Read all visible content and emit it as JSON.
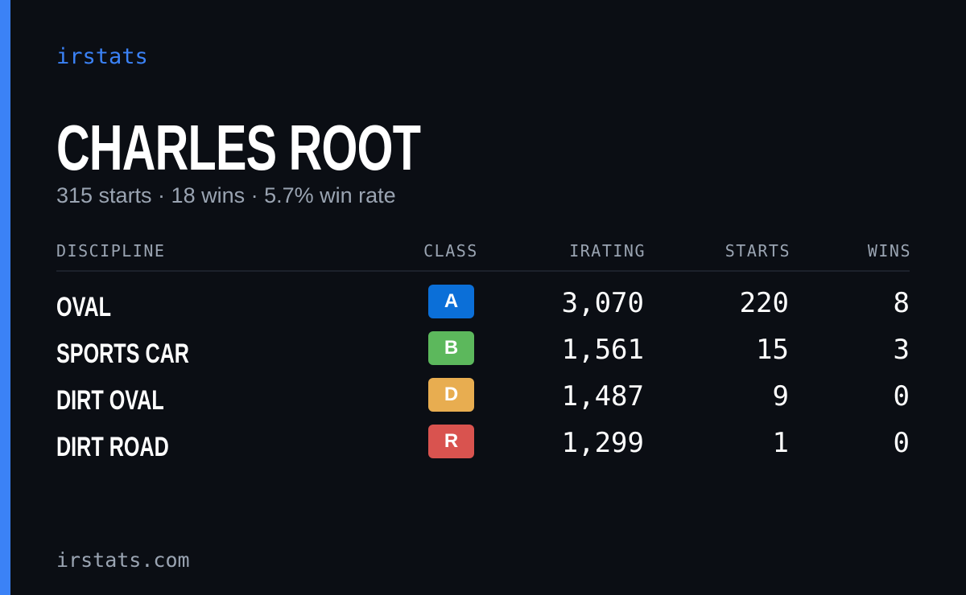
{
  "brand": "irstats",
  "profile": {
    "name": "CHARLES ROOT",
    "summary": "315 starts · 18 wins · 5.7% win rate"
  },
  "table": {
    "headers": [
      "DISCIPLINE",
      "CLASS",
      "IRATING",
      "STARTS",
      "WINS"
    ],
    "rows": [
      {
        "discipline": "OVAL",
        "class": "A",
        "class_color": "#0b6fd8",
        "irating": "3,070",
        "starts": "220",
        "wins": "8"
      },
      {
        "discipline": "SPORTS CAR",
        "class": "B",
        "class_color": "#5cb85c",
        "irating": "1,561",
        "starts": "15",
        "wins": "3"
      },
      {
        "discipline": "DIRT OVAL",
        "class": "D",
        "class_color": "#e8ad50",
        "irating": "1,487",
        "starts": "9",
        "wins": "0"
      },
      {
        "discipline": "DIRT ROAD",
        "class": "R",
        "class_color": "#d9534f",
        "irating": "1,299",
        "starts": "1",
        "wins": "0"
      }
    ]
  },
  "footer": "irstats.com"
}
